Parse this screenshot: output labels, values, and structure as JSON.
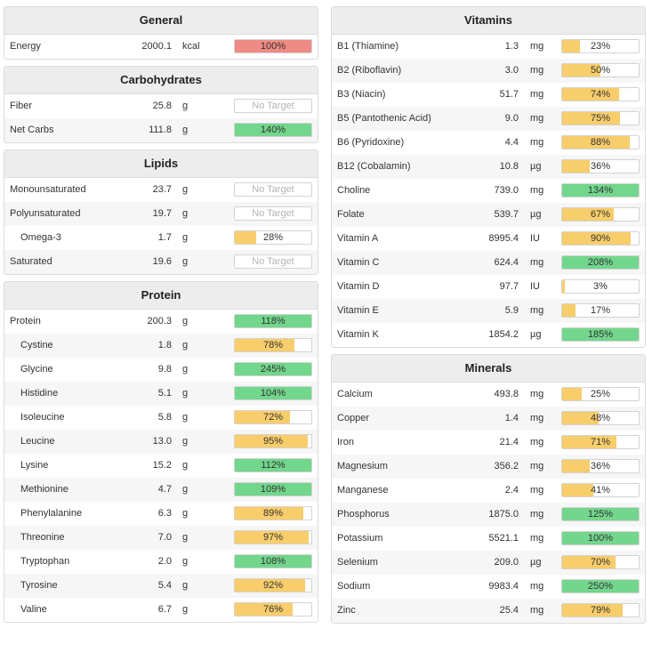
{
  "colors": {
    "red": "#f08a84",
    "yellow": "#f8cd6b",
    "green": "#72d68c"
  },
  "left_panels": [
    {
      "title": "General",
      "rows": [
        {
          "name": "Energy",
          "amount": "2000.1",
          "unit": "kcal",
          "pct_label": "100%",
          "fill": 1.0,
          "color": "red",
          "indent": false,
          "target": true
        }
      ]
    },
    {
      "title": "Carbohydrates",
      "rows": [
        {
          "name": "Fiber",
          "amount": "25.8",
          "unit": "g",
          "pct_label": "No Target",
          "fill": 0,
          "color": "none",
          "indent": false,
          "target": false
        },
        {
          "name": "Net Carbs",
          "amount": "111.8",
          "unit": "g",
          "pct_label": "140%",
          "fill": 1.0,
          "color": "green",
          "indent": false,
          "target": true
        }
      ]
    },
    {
      "title": "Lipids",
      "rows": [
        {
          "name": "Monounsaturated",
          "amount": "23.7",
          "unit": "g",
          "pct_label": "No Target",
          "fill": 0,
          "color": "none",
          "indent": false,
          "target": false
        },
        {
          "name": "Polyunsaturated",
          "amount": "19.7",
          "unit": "g",
          "pct_label": "No Target",
          "fill": 0,
          "color": "none",
          "indent": false,
          "target": false
        },
        {
          "name": "Omega-3",
          "amount": "1.7",
          "unit": "g",
          "pct_label": "28%",
          "fill": 0.28,
          "color": "yellow",
          "indent": true,
          "target": true
        },
        {
          "name": "Saturated",
          "amount": "19.6",
          "unit": "g",
          "pct_label": "No Target",
          "fill": 0,
          "color": "none",
          "indent": false,
          "target": false
        }
      ]
    },
    {
      "title": "Protein",
      "rows": [
        {
          "name": "Protein",
          "amount": "200.3",
          "unit": "g",
          "pct_label": "118%",
          "fill": 1.0,
          "color": "green",
          "indent": false,
          "target": true
        },
        {
          "name": "Cystine",
          "amount": "1.8",
          "unit": "g",
          "pct_label": "78%",
          "fill": 0.78,
          "color": "yellow",
          "indent": true,
          "target": true
        },
        {
          "name": "Glycine",
          "amount": "9.8",
          "unit": "g",
          "pct_label": "245%",
          "fill": 1.0,
          "color": "green",
          "indent": true,
          "target": true
        },
        {
          "name": "Histidine",
          "amount": "5.1",
          "unit": "g",
          "pct_label": "104%",
          "fill": 1.0,
          "color": "green",
          "indent": true,
          "target": true
        },
        {
          "name": "Isoleucine",
          "amount": "5.8",
          "unit": "g",
          "pct_label": "72%",
          "fill": 0.72,
          "color": "yellow",
          "indent": true,
          "target": true
        },
        {
          "name": "Leucine",
          "amount": "13.0",
          "unit": "g",
          "pct_label": "95%",
          "fill": 0.95,
          "color": "yellow",
          "indent": true,
          "target": true
        },
        {
          "name": "Lysine",
          "amount": "15.2",
          "unit": "g",
          "pct_label": "112%",
          "fill": 1.0,
          "color": "green",
          "indent": true,
          "target": true
        },
        {
          "name": "Methionine",
          "amount": "4.7",
          "unit": "g",
          "pct_label": "109%",
          "fill": 1.0,
          "color": "green",
          "indent": true,
          "target": true
        },
        {
          "name": "Phenylalanine",
          "amount": "6.3",
          "unit": "g",
          "pct_label": "89%",
          "fill": 0.89,
          "color": "yellow",
          "indent": true,
          "target": true
        },
        {
          "name": "Threonine",
          "amount": "7.0",
          "unit": "g",
          "pct_label": "97%",
          "fill": 0.97,
          "color": "yellow",
          "indent": true,
          "target": true
        },
        {
          "name": "Tryptophan",
          "amount": "2.0",
          "unit": "g",
          "pct_label": "108%",
          "fill": 1.0,
          "color": "green",
          "indent": true,
          "target": true
        },
        {
          "name": "Tyrosine",
          "amount": "5.4",
          "unit": "g",
          "pct_label": "92%",
          "fill": 0.92,
          "color": "yellow",
          "indent": true,
          "target": true
        },
        {
          "name": "Valine",
          "amount": "6.7",
          "unit": "g",
          "pct_label": "76%",
          "fill": 0.76,
          "color": "yellow",
          "indent": true,
          "target": true
        }
      ]
    }
  ],
  "right_panels": [
    {
      "title": "Vitamins",
      "rows": [
        {
          "name": "B1 (Thiamine)",
          "amount": "1.3",
          "unit": "mg",
          "pct_label": "23%",
          "fill": 0.23,
          "color": "yellow",
          "indent": false,
          "target": true
        },
        {
          "name": "B2 (Riboflavin)",
          "amount": "3.0",
          "unit": "mg",
          "pct_label": "50%",
          "fill": 0.5,
          "color": "yellow",
          "indent": false,
          "target": true
        },
        {
          "name": "B3 (Niacin)",
          "amount": "51.7",
          "unit": "mg",
          "pct_label": "74%",
          "fill": 0.74,
          "color": "yellow",
          "indent": false,
          "target": true
        },
        {
          "name": "B5 (Pantothenic Acid)",
          "amount": "9.0",
          "unit": "mg",
          "pct_label": "75%",
          "fill": 0.75,
          "color": "yellow",
          "indent": false,
          "target": true
        },
        {
          "name": "B6 (Pyridoxine)",
          "amount": "4.4",
          "unit": "mg",
          "pct_label": "88%",
          "fill": 0.88,
          "color": "yellow",
          "indent": false,
          "target": true
        },
        {
          "name": "B12 (Cobalamin)",
          "amount": "10.8",
          "unit": "µg",
          "pct_label": "36%",
          "fill": 0.36,
          "color": "yellow",
          "indent": false,
          "target": true
        },
        {
          "name": "Choline",
          "amount": "739.0",
          "unit": "mg",
          "pct_label": "134%",
          "fill": 1.0,
          "color": "green",
          "indent": false,
          "target": true
        },
        {
          "name": "Folate",
          "amount": "539.7",
          "unit": "µg",
          "pct_label": "67%",
          "fill": 0.67,
          "color": "yellow",
          "indent": false,
          "target": true
        },
        {
          "name": "Vitamin A",
          "amount": "8995.4",
          "unit": "IU",
          "pct_label": "90%",
          "fill": 0.9,
          "color": "yellow",
          "indent": false,
          "target": true
        },
        {
          "name": "Vitamin C",
          "amount": "624.4",
          "unit": "mg",
          "pct_label": "208%",
          "fill": 1.0,
          "color": "green",
          "indent": false,
          "target": true
        },
        {
          "name": "Vitamin D",
          "amount": "97.7",
          "unit": "IU",
          "pct_label": "3%",
          "fill": 0.03,
          "color": "yellow",
          "indent": false,
          "target": true
        },
        {
          "name": "Vitamin E",
          "amount": "5.9",
          "unit": "mg",
          "pct_label": "17%",
          "fill": 0.17,
          "color": "yellow",
          "indent": false,
          "target": true
        },
        {
          "name": "Vitamin K",
          "amount": "1854.2",
          "unit": "µg",
          "pct_label": "185%",
          "fill": 1.0,
          "color": "green",
          "indent": false,
          "target": true
        }
      ]
    },
    {
      "title": "Minerals",
      "rows": [
        {
          "name": "Calcium",
          "amount": "493.8",
          "unit": "mg",
          "pct_label": "25%",
          "fill": 0.25,
          "color": "yellow",
          "indent": false,
          "target": true
        },
        {
          "name": "Copper",
          "amount": "1.4",
          "unit": "mg",
          "pct_label": "48%",
          "fill": 0.48,
          "color": "yellow",
          "indent": false,
          "target": true
        },
        {
          "name": "Iron",
          "amount": "21.4",
          "unit": "mg",
          "pct_label": "71%",
          "fill": 0.71,
          "color": "yellow",
          "indent": false,
          "target": true
        },
        {
          "name": "Magnesium",
          "amount": "356.2",
          "unit": "mg",
          "pct_label": "36%",
          "fill": 0.36,
          "color": "yellow",
          "indent": false,
          "target": true
        },
        {
          "name": "Manganese",
          "amount": "2.4",
          "unit": "mg",
          "pct_label": "41%",
          "fill": 0.41,
          "color": "yellow",
          "indent": false,
          "target": true
        },
        {
          "name": "Phosphorus",
          "amount": "1875.0",
          "unit": "mg",
          "pct_label": "125%",
          "fill": 1.0,
          "color": "green",
          "indent": false,
          "target": true
        },
        {
          "name": "Potassium",
          "amount": "5521.1",
          "unit": "mg",
          "pct_label": "100%",
          "fill": 1.0,
          "color": "green",
          "indent": false,
          "target": true
        },
        {
          "name": "Selenium",
          "amount": "209.0",
          "unit": "µg",
          "pct_label": "70%",
          "fill": 0.7,
          "color": "yellow",
          "indent": false,
          "target": true
        },
        {
          "name": "Sodium",
          "amount": "9983.4",
          "unit": "mg",
          "pct_label": "250%",
          "fill": 1.0,
          "color": "green",
          "indent": false,
          "target": true
        },
        {
          "name": "Zinc",
          "amount": "25.4",
          "unit": "mg",
          "pct_label": "79%",
          "fill": 0.79,
          "color": "yellow",
          "indent": false,
          "target": true
        }
      ]
    }
  ]
}
